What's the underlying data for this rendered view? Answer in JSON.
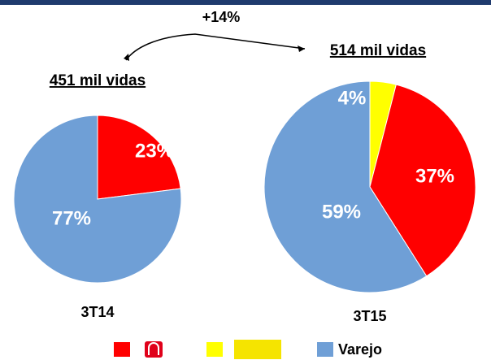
{
  "annotation": "+14%",
  "legend": {
    "categories": [
      null,
      null,
      "Varejo"
    ],
    "colors": [
      "#ff0000",
      "#ffff00",
      "#6f9fd6"
    ]
  },
  "chart_data": [
    {
      "type": "pie",
      "title": "3T14",
      "subtitle": "451 mil vidas",
      "values": [
        23,
        77
      ],
      "value_labels": [
        "23%",
        "77%"
      ],
      "colors": [
        "#ff0000",
        "#6f9fd6"
      ]
    },
    {
      "type": "pie",
      "title": "3T15",
      "subtitle": "514 mil vidas",
      "values": [
        4,
        37,
        59
      ],
      "value_labels": [
        "4%",
        "37%",
        "59%"
      ],
      "colors": [
        "#ffff00",
        "#ff0000",
        "#6f9fd6"
      ]
    }
  ]
}
